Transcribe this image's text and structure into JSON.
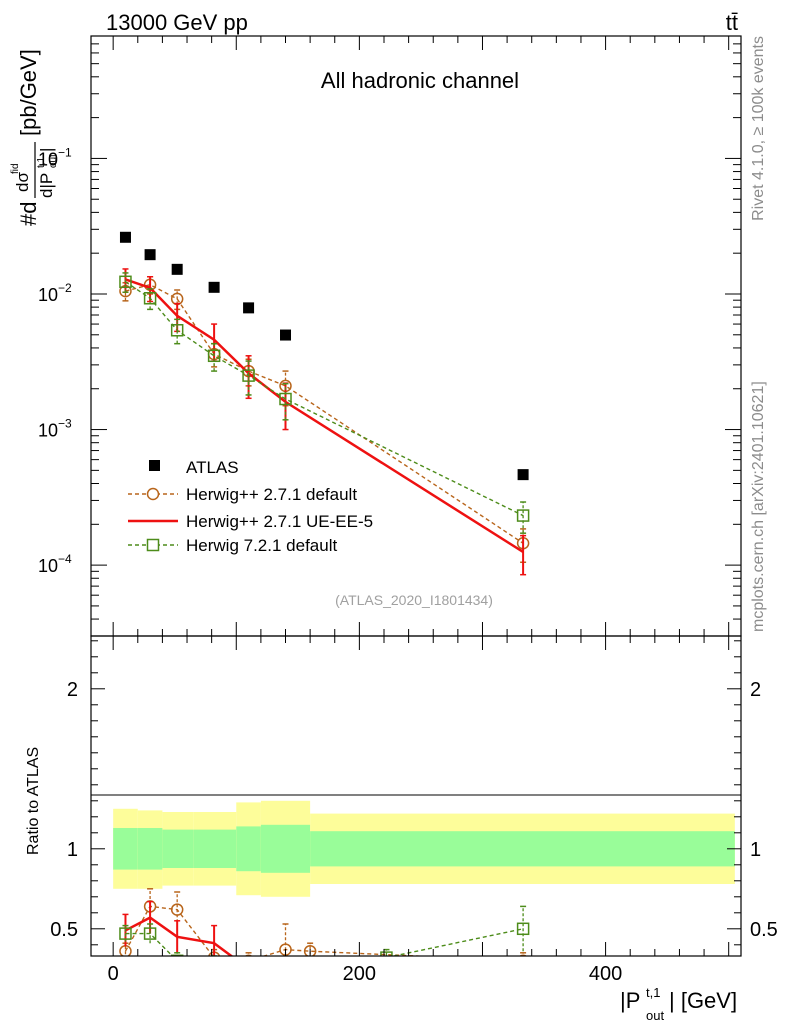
{
  "header": {
    "energy_label": "13000 GeV pp",
    "process_label": "tt̄"
  },
  "side": {
    "rivet_label": "Rivet 4.1.0, ≥ 100k events",
    "mcplots_label": "mcplots.cern.ch [arXiv:2401.10621]"
  },
  "chart_data": [
    {
      "type": "scatter",
      "panel": "main",
      "title": "All hadronic channel",
      "analysis_label": "(ATLAS_2020_I1801434)",
      "ylabel": "#d dσ^{fid}/d|P_{out}^{t,1}| [pb/GeV]",
      "yscale": "log",
      "ylim": [
        3e-05,
        0.8
      ],
      "xlim": [
        -18,
        510
      ],
      "yticks": [
        {
          "value": 0.0001,
          "mantissa": "10",
          "exp": "−4"
        },
        {
          "value": 0.001,
          "mantissa": "10",
          "exp": "−3"
        },
        {
          "value": 0.01,
          "mantissa": "10",
          "exp": "−2"
        },
        {
          "value": 0.1,
          "mantissa": "10",
          "exp": "−1"
        }
      ],
      "series": [
        {
          "name": "ATLAS",
          "color": "#000000",
          "style": "square-filled",
          "x": [
            10,
            30,
            52,
            82,
            110,
            140,
            333
          ],
          "y": [
            0.0262,
            0.0195,
            0.0152,
            0.0112,
            0.0079,
            0.00498,
            0.000465
          ]
        },
        {
          "name": "Herwig++ 2.7.1 default",
          "color": "#b8651b",
          "style": "circle-dashed",
          "x": [
            10,
            30,
            52,
            82,
            110,
            140,
            333
          ],
          "y": [
            0.0105,
            0.0117,
            0.0092,
            0.0036,
            0.0027,
            0.0021,
            0.000145
          ],
          "err": [
            0.0016,
            0.0017,
            0.0015,
            0.0007,
            0.0006,
            0.0006,
            4e-05
          ]
        },
        {
          "name": "Herwig++ 2.7.1 UE-EE-5",
          "color": "#ee1111",
          "style": "line-solid",
          "x": [
            10,
            30,
            52,
            82,
            110,
            140,
            333
          ],
          "y": [
            0.0128,
            0.0111,
            0.0069,
            0.0046,
            0.0026,
            0.0016,
            0.000125
          ],
          "err": [
            0.0025,
            0.0023,
            0.0016,
            0.0014,
            0.0009,
            0.0006,
            4e-05
          ]
        },
        {
          "name": "Herwig 7.2.1 default",
          "color": "#4d8c1a",
          "style": "square-dashed",
          "x": [
            10,
            30,
            52,
            82,
            110,
            140,
            333
          ],
          "y": [
            0.0123,
            0.0093,
            0.0054,
            0.0035,
            0.0025,
            0.00168,
            0.000232
          ],
          "err": [
            0.002,
            0.0016,
            0.0011,
            0.0008,
            0.0007,
            0.0005,
            6e-05
          ]
        }
      ]
    },
    {
      "type": "scatter",
      "panel": "ratio",
      "ylabel": "Ratio to ATLAS",
      "xlabel": "|P_{out}^{t,1}| [GeV]",
      "ylim": [
        0.33,
        2.33
      ],
      "xlim": [
        -18,
        510
      ],
      "xticks": [
        0,
        200,
        400
      ],
      "yticks": [
        0.5,
        1,
        2
      ],
      "bins": [
        {
          "lo": 0,
          "hi": 20,
          "green": [
            0.87,
            1.13
          ],
          "yellow": [
            0.75,
            1.25
          ]
        },
        {
          "lo": 20,
          "hi": 40,
          "green": [
            0.87,
            1.13
          ],
          "yellow": [
            0.75,
            1.24
          ]
        },
        {
          "lo": 40,
          "hi": 65,
          "green": [
            0.88,
            1.12
          ],
          "yellow": [
            0.77,
            1.23
          ]
        },
        {
          "lo": 65,
          "hi": 100,
          "green": [
            0.88,
            1.12
          ],
          "yellow": [
            0.77,
            1.23
          ]
        },
        {
          "lo": 100,
          "hi": 120,
          "green": [
            0.86,
            1.14
          ],
          "yellow": [
            0.71,
            1.29
          ]
        },
        {
          "lo": 120,
          "hi": 160,
          "green": [
            0.85,
            1.15
          ],
          "yellow": [
            0.7,
            1.3
          ]
        },
        {
          "lo": 160,
          "hi": 505,
          "green": [
            0.89,
            1.11
          ],
          "yellow": [
            0.78,
            1.22
          ]
        }
      ],
      "series": [
        {
          "name": "Herwig++ 2.7.1 default",
          "color": "#b8651b",
          "x": [
            10,
            30,
            52,
            82,
            110,
            140,
            160,
            333
          ],
          "y": [
            0.36,
            0.64,
            0.62,
            0.32,
            0.3,
            0.37,
            0.36,
            0.3
          ],
          "err": [
            0.05,
            0.11,
            0.11,
            0.05,
            0.05,
            0.16,
            0.05,
            0.05
          ]
        },
        {
          "name": "Herwig++ 2.7.1 UE-EE-5",
          "color": "#ee1111",
          "x": [
            10,
            30,
            52,
            82,
            110
          ],
          "y": [
            0.49,
            0.57,
            0.45,
            0.41,
            0.25
          ],
          "err": [
            0.1,
            0.1,
            0.1,
            0.11,
            0.05
          ]
        },
        {
          "name": "Herwig 7.2.1 default",
          "color": "#4d8c1a",
          "x": [
            10,
            30,
            52,
            82,
            222,
            333
          ],
          "y": [
            0.47,
            0.47,
            0.3,
            0.28,
            0.32,
            0.5
          ],
          "err": [
            0.05,
            0.06,
            0.05,
            0.05,
            0.05,
            0.14
          ]
        }
      ]
    }
  ]
}
